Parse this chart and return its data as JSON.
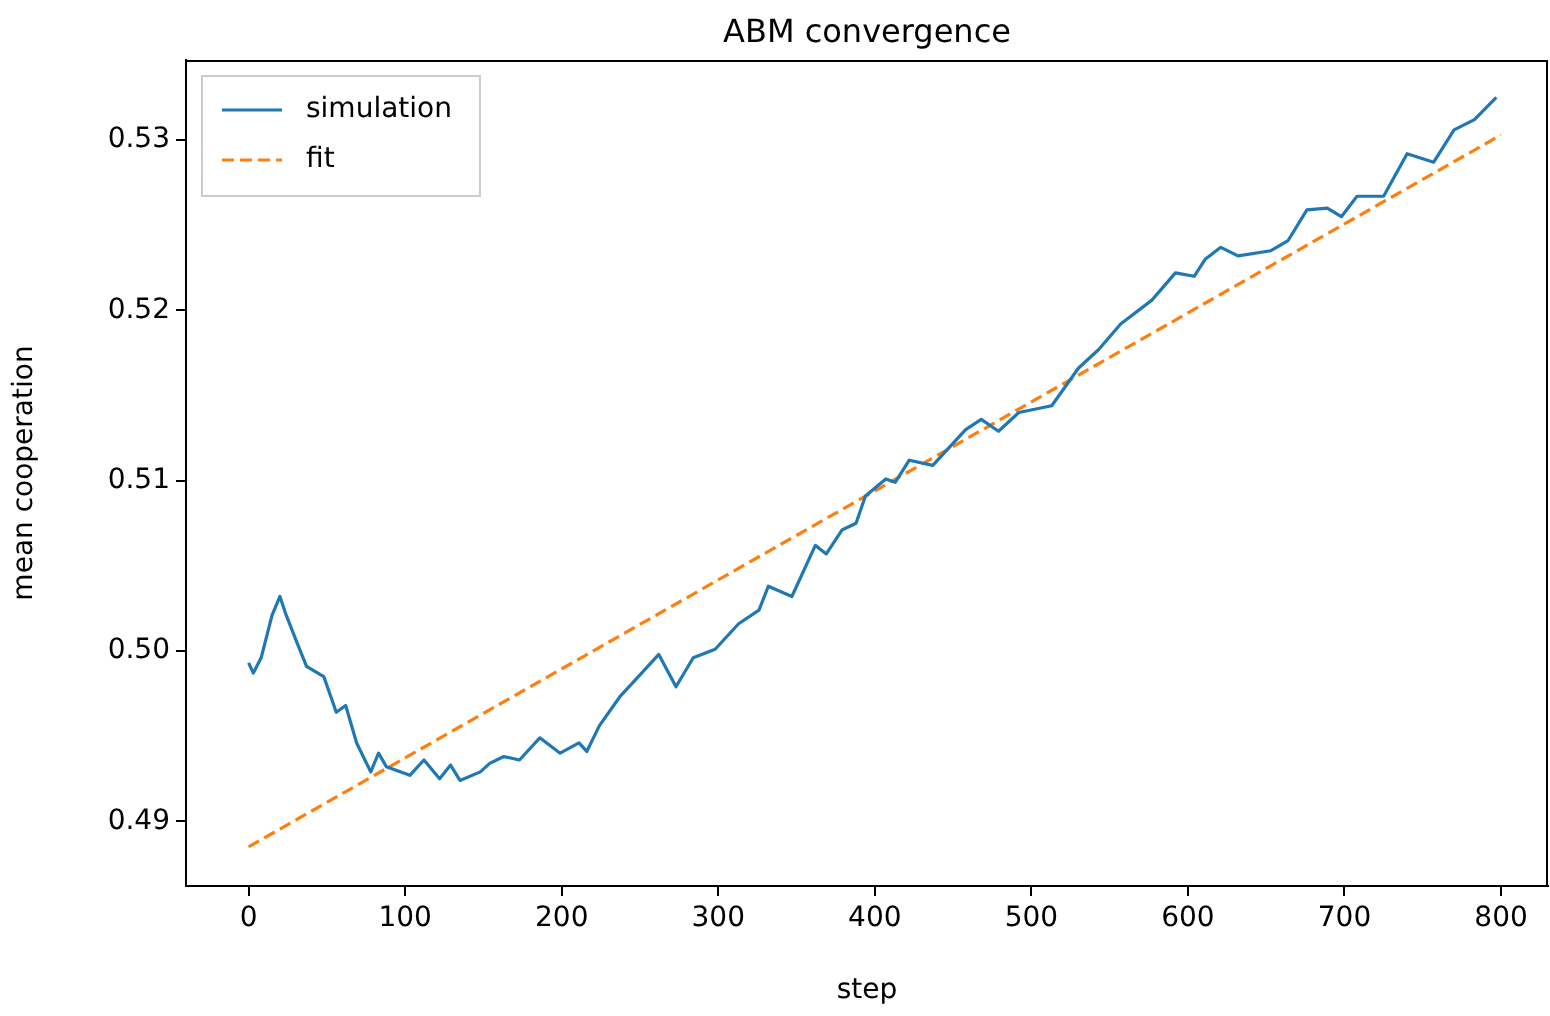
{
  "chart_data": {
    "type": "line",
    "title": "ABM convergence",
    "xlabel": "step",
    "ylabel": "mean cooperation",
    "xlim": [
      -40,
      830
    ],
    "ylim": [
      0.4862,
      0.5347
    ],
    "xticks": [
      0,
      100,
      200,
      300,
      400,
      500,
      600,
      700,
      800
    ],
    "yticks": [
      0.49,
      {
        "value": 0.5,
        "label": "0.50"
      },
      0.51,
      0.52,
      0.53
    ],
    "grid": false,
    "legend": "top left",
    "marker": "none",
    "series": [
      {
        "name": "simulation",
        "color": "#1f77b4",
        "line_style": "solid",
        "x": [
          0,
          3,
          8,
          15,
          20,
          24,
          30,
          37,
          48,
          56,
          62,
          69,
          78,
          83,
          88,
          103,
          112,
          122,
          129,
          135,
          148,
          154,
          163,
          173,
          186,
          199,
          211,
          216,
          224,
          237,
          250,
          262,
          273,
          284,
          298,
          313,
          326,
          332,
          347,
          362,
          369,
          379,
          388,
          394,
          407,
          413,
          422,
          437,
          458,
          468,
          479,
          492,
          513,
          530,
          543,
          557,
          577,
          592,
          604,
          611,
          621,
          632,
          653,
          664,
          676,
          689,
          698,
          708,
          725,
          740,
          757,
          770,
          783,
          797
        ],
        "values": [
          0.4993,
          0.4987,
          0.4996,
          0.5021,
          0.5032,
          0.5021,
          0.5007,
          0.4991,
          0.4985,
          0.4964,
          0.4968,
          0.4946,
          0.4929,
          0.494,
          0.4932,
          0.4927,
          0.4936,
          0.4925,
          0.4933,
          0.4924,
          0.4929,
          0.4934,
          0.4938,
          0.4936,
          0.4949,
          0.494,
          0.4946,
          0.4941,
          0.4956,
          0.4973,
          0.4986,
          0.4998,
          0.4979,
          0.4996,
          0.5001,
          0.5016,
          0.5024,
          0.5038,
          0.5032,
          0.5062,
          0.5057,
          0.5071,
          0.5075,
          0.5091,
          0.5101,
          0.5099,
          0.5112,
          0.5109,
          0.513,
          0.5136,
          0.5129,
          0.514,
          0.5144,
          0.5166,
          0.5177,
          0.5192,
          0.5206,
          0.5222,
          0.522,
          0.523,
          0.5237,
          0.5232,
          0.5235,
          0.5241,
          0.5259,
          0.526,
          0.5255,
          0.5267,
          0.5267,
          0.5292,
          0.5287,
          0.5306,
          0.5312,
          0.5325
        ]
      },
      {
        "name": "fit",
        "color": "#ff7f0e",
        "line_style": "dashed",
        "x": [
          0,
          800
        ],
        "values": [
          0.4885,
          0.5303
        ]
      }
    ]
  }
}
